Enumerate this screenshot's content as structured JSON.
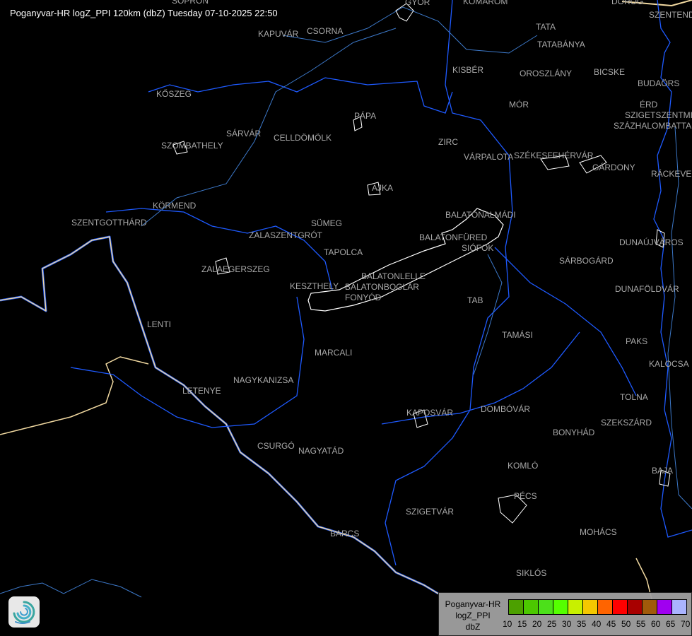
{
  "title": "Poganyvar-HR logZ_PPI 120km (dbZ) Tuesday 07-10-2025 22:50",
  "cities": [
    {
      "name": "SOPRON"
    },
    {
      "name": "GYŐR"
    },
    {
      "name": "KOMÁROM"
    },
    {
      "name": "DOROG"
    },
    {
      "name": "SZENTENDRE"
    },
    {
      "name": "KAPUVÁR"
    },
    {
      "name": "CSORNA"
    },
    {
      "name": "TATA"
    },
    {
      "name": "TATABÁNYA"
    },
    {
      "name": "KISBÉR"
    },
    {
      "name": "OROSZLÁNY"
    },
    {
      "name": "BICSKE"
    },
    {
      "name": "BUDAÖRS"
    },
    {
      "name": "ÉRD"
    },
    {
      "name": "SZIGETSZENTMIKLÓS"
    },
    {
      "name": "SZÁZHALOMBATTA"
    },
    {
      "name": "KŐSZEG"
    },
    {
      "name": "PÁPA"
    },
    {
      "name": "MÓR"
    },
    {
      "name": "SÁRVÁR"
    },
    {
      "name": "SZOMBATHELY"
    },
    {
      "name": "CELLDÖMÖLK"
    },
    {
      "name": "ZIRC"
    },
    {
      "name": "VÁRPALOTA"
    },
    {
      "name": "SZÉKESFEHÉRVÁR"
    },
    {
      "name": "GÁRDONY"
    },
    {
      "name": "RÁCKEVE"
    },
    {
      "name": "AJKA"
    },
    {
      "name": "KÖRMEND"
    },
    {
      "name": "BALATONALMÁDI"
    },
    {
      "name": "SZENTGOTTHÁRD"
    },
    {
      "name": "SÜMEG"
    },
    {
      "name": "ZALASZENTGRÓT"
    },
    {
      "name": "BALATONFÜRED"
    },
    {
      "name": "SIÓFOK"
    },
    {
      "name": "DUNAÚJVÁROS"
    },
    {
      "name": "TAPOLCA"
    },
    {
      "name": "SÁRBOGÁRD"
    },
    {
      "name": "ZALAEGERSZEG"
    },
    {
      "name": "BALATONLELLE"
    },
    {
      "name": "KESZTHELY"
    },
    {
      "name": "BALATONBOGLÁR"
    },
    {
      "name": "FONYÓD"
    },
    {
      "name": "DUNAFÖLDVÁR"
    },
    {
      "name": "TAB"
    },
    {
      "name": "LENTI"
    },
    {
      "name": "TAMÁSI"
    },
    {
      "name": "MARCALI"
    },
    {
      "name": "PAKS"
    },
    {
      "name": "KALOCSA"
    },
    {
      "name": "NAGYKANIZSA"
    },
    {
      "name": "LETENYE"
    },
    {
      "name": "TOLNA"
    },
    {
      "name": "KAPOSVÁR"
    },
    {
      "name": "DOMBÓVÁR"
    },
    {
      "name": "SZEKSZÁRD"
    },
    {
      "name": "BONYHÁD"
    },
    {
      "name": "CSURGÓ"
    },
    {
      "name": "NAGYATÁD"
    },
    {
      "name": "KOMLÓ"
    },
    {
      "name": "BAJA"
    },
    {
      "name": "PÉCS"
    },
    {
      "name": "SZIGETVÁR"
    },
    {
      "name": "MOHÁCS"
    },
    {
      "name": "BARCS"
    },
    {
      "name": "SIKLÓS"
    }
  ],
  "legend": {
    "line1": "Poganyvar-HR",
    "line2": "logZ_PPI",
    "line3": "dbZ",
    "ticks": [
      "10",
      "15",
      "20",
      "25",
      "30",
      "35",
      "40",
      "45",
      "50",
      "55",
      "60",
      "65",
      "70"
    ],
    "colors": [
      "#4ca000",
      "#4cc800",
      "#4ce01a",
      "#55ff00",
      "#c8f000",
      "#f5c800",
      "#ff6400",
      "#ff0000",
      "#a80000",
      "#a05a0a",
      "#a000f0",
      "#aab4ff"
    ]
  },
  "colors": {
    "river": "#1e5aff",
    "minor_river": "#3c78c8",
    "border": "#f0d8a0",
    "lake": "#ffffff",
    "city_text": "#a8a8a8"
  },
  "logo": {
    "icon": "swirl-logo-icon"
  }
}
